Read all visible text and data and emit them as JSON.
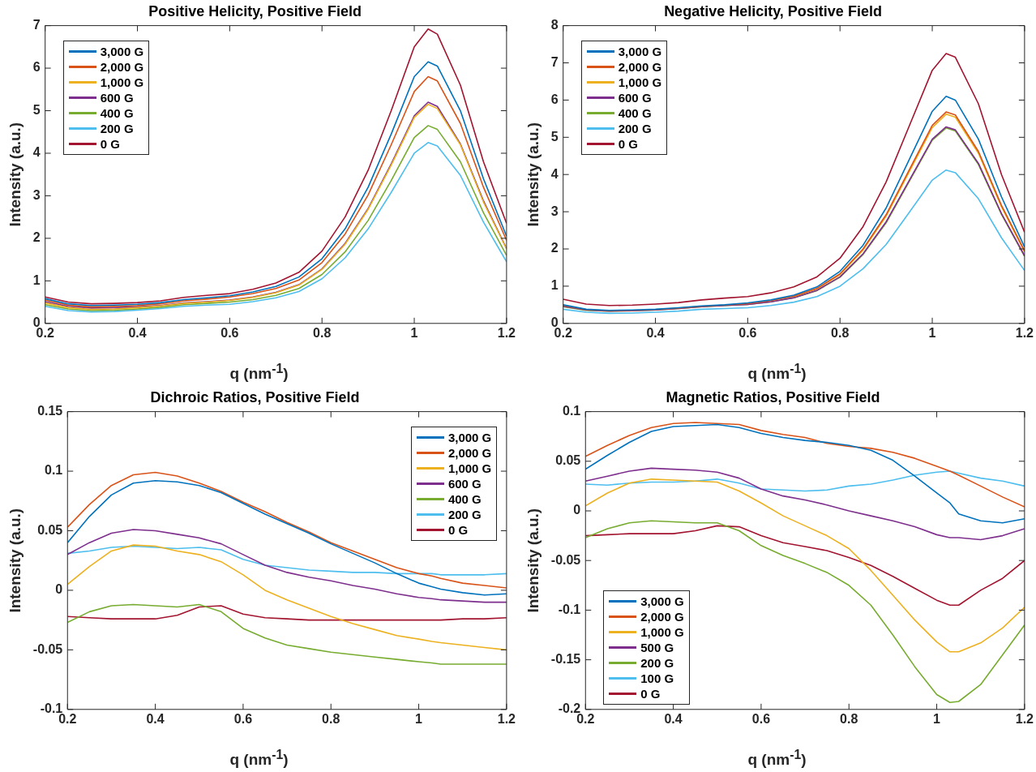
{
  "chart_data": [
    {
      "type": "line",
      "title": "Positive Helicity, Positive Field",
      "xlabel": "q (nm$^{-1}$)",
      "ylabel": "Intensity (a.u.)",
      "legend": "top left",
      "x": [
        0.2,
        0.25,
        0.3,
        0.35,
        0.4,
        0.45,
        0.5,
        0.55,
        0.6,
        0.65,
        0.7,
        0.75,
        0.8,
        0.85,
        0.9,
        0.95,
        1.0,
        1.03,
        1.05,
        1.1,
        1.15,
        1.2
      ],
      "xlim": [
        0.2,
        1.2
      ],
      "xticks": [
        0.2,
        0.4,
        0.6,
        0.8,
        1,
        1.2
      ],
      "ylim": [
        0,
        7
      ],
      "yticks": [
        0,
        1,
        2,
        3,
        4,
        5,
        6,
        7
      ],
      "series": [
        {
          "name": "3,000 G",
          "color": "#0072bd",
          "values": [
            0.58,
            0.46,
            0.42,
            0.43,
            0.45,
            0.49,
            0.56,
            0.6,
            0.65,
            0.74,
            0.87,
            1.09,
            1.52,
            2.22,
            3.2,
            4.45,
            5.8,
            6.15,
            6.05,
            5.0,
            3.4,
            2.05
          ]
        },
        {
          "name": "2,000 G",
          "color": "#d95319",
          "values": [
            0.55,
            0.43,
            0.39,
            0.4,
            0.42,
            0.46,
            0.53,
            0.57,
            0.62,
            0.7,
            0.82,
            1.02,
            1.43,
            2.1,
            3.02,
            4.2,
            5.45,
            5.8,
            5.7,
            4.7,
            3.2,
            1.95
          ]
        },
        {
          "name": "1,000 G",
          "color": "#edb120",
          "values": [
            0.48,
            0.37,
            0.33,
            0.34,
            0.37,
            0.41,
            0.47,
            0.5,
            0.54,
            0.61,
            0.72,
            0.9,
            1.27,
            1.86,
            2.68,
            3.72,
            4.84,
            5.15,
            5.05,
            4.2,
            2.85,
            1.75
          ]
        },
        {
          "name": "600 G",
          "color": "#7e2f8e",
          "values": [
            0.51,
            0.4,
            0.36,
            0.37,
            0.39,
            0.42,
            0.48,
            0.51,
            0.55,
            0.62,
            0.73,
            0.91,
            1.28,
            1.88,
            2.7,
            3.75,
            4.88,
            5.2,
            5.1,
            4.22,
            2.88,
            1.76
          ]
        },
        {
          "name": "400 G",
          "color": "#77ac30",
          "values": [
            0.44,
            0.34,
            0.3,
            0.31,
            0.34,
            0.38,
            0.44,
            0.47,
            0.5,
            0.56,
            0.66,
            0.82,
            1.15,
            1.68,
            2.42,
            3.36,
            4.37,
            4.65,
            4.56,
            3.8,
            2.6,
            1.6
          ]
        },
        {
          "name": "200 G",
          "color": "#4dbeee",
          "values": [
            0.4,
            0.3,
            0.27,
            0.28,
            0.31,
            0.35,
            0.4,
            0.43,
            0.45,
            0.51,
            0.6,
            0.75,
            1.05,
            1.54,
            2.22,
            3.08,
            4.0,
            4.25,
            4.17,
            3.48,
            2.38,
            1.45
          ]
        },
        {
          "name": "0 G",
          "color": "#a2142f",
          "values": [
            0.62,
            0.5,
            0.46,
            0.47,
            0.49,
            0.53,
            0.61,
            0.66,
            0.7,
            0.8,
            0.95,
            1.2,
            1.7,
            2.5,
            3.6,
            5.0,
            6.5,
            6.92,
            6.8,
            5.6,
            3.8,
            2.35
          ]
        }
      ]
    },
    {
      "type": "line",
      "title": "Negative Helicity, Positive Field",
      "xlabel": "q (nm$^{-1}$)",
      "ylabel": "Intensity (a.u.)",
      "legend": "top left",
      "x": [
        0.2,
        0.25,
        0.3,
        0.35,
        0.4,
        0.45,
        0.5,
        0.55,
        0.6,
        0.65,
        0.7,
        0.75,
        0.8,
        0.85,
        0.9,
        0.95,
        1.0,
        1.03,
        1.05,
        1.1,
        1.15,
        1.2
      ],
      "xlim": [
        0.2,
        1.2
      ],
      "xticks": [
        0.2,
        0.4,
        0.6,
        0.8,
        1,
        1.2
      ],
      "ylim": [
        0,
        8
      ],
      "yticks": [
        0,
        1,
        2,
        3,
        4,
        5,
        6,
        7,
        8
      ],
      "series": [
        {
          "name": "3,000 G",
          "color": "#0072bd",
          "values": [
            0.5,
            0.38,
            0.35,
            0.36,
            0.38,
            0.42,
            0.47,
            0.5,
            0.55,
            0.63,
            0.76,
            0.98,
            1.4,
            2.1,
            3.1,
            4.4,
            5.7,
            6.1,
            6.0,
            4.95,
            3.4,
            2.05
          ]
        },
        {
          "name": "2,000 G",
          "color": "#d95319",
          "values": [
            0.48,
            0.37,
            0.34,
            0.35,
            0.37,
            0.41,
            0.46,
            0.49,
            0.53,
            0.61,
            0.73,
            0.94,
            1.33,
            2.0,
            2.92,
            4.12,
            5.32,
            5.68,
            5.6,
            4.62,
            3.17,
            1.95
          ]
        },
        {
          "name": "1,000 G",
          "color": "#edb120",
          "values": [
            null,
            null,
            null,
            null,
            null,
            null,
            null,
            null,
            null,
            null,
            0.72,
            0.93,
            1.31,
            1.97,
            2.88,
            4.07,
            5.26,
            5.62,
            5.54,
            4.57,
            3.13,
            1.92
          ]
        },
        {
          "name": "600 G",
          "color": "#7e2f8e",
          "values": [
            0.46,
            0.36,
            0.33,
            0.34,
            0.36,
            0.4,
            0.45,
            0.48,
            0.51,
            0.58,
            0.69,
            0.89,
            1.25,
            1.87,
            2.73,
            3.84,
            4.95,
            5.28,
            5.2,
            4.3,
            2.95,
            1.82
          ]
        },
        {
          "name": "400 G",
          "color": "#77ac30",
          "values": [
            0.45,
            0.35,
            0.33,
            0.34,
            0.36,
            0.4,
            0.45,
            0.48,
            0.51,
            0.58,
            0.69,
            0.88,
            1.24,
            1.85,
            2.7,
            3.81,
            4.92,
            5.25,
            5.17,
            4.27,
            2.93,
            1.8
          ]
        },
        {
          "name": "200 G",
          "color": "#4dbeee",
          "values": [
            0.38,
            0.3,
            0.27,
            0.28,
            0.3,
            0.33,
            0.38,
            0.4,
            0.42,
            0.48,
            0.57,
            0.72,
            1.0,
            1.47,
            2.12,
            2.98,
            3.85,
            4.12,
            4.05,
            3.35,
            2.3,
            1.42
          ]
        },
        {
          "name": "0 G",
          "color": "#a2142f",
          "values": [
            0.65,
            0.52,
            0.48,
            0.49,
            0.52,
            0.56,
            0.63,
            0.68,
            0.72,
            0.82,
            0.98,
            1.25,
            1.75,
            2.6,
            3.8,
            5.3,
            6.8,
            7.25,
            7.15,
            5.9,
            4.0,
            2.45
          ]
        }
      ]
    },
    {
      "type": "line",
      "title": "Dichroic Ratios, Positive Field",
      "xlabel": "q (nm$^{-1}$)",
      "ylabel": "Intensity (a.u.)",
      "legend": "top right",
      "x": [
        0.2,
        0.25,
        0.3,
        0.35,
        0.4,
        0.45,
        0.5,
        0.55,
        0.6,
        0.65,
        0.7,
        0.75,
        0.8,
        0.85,
        0.9,
        0.95,
        1.0,
        1.03,
        1.05,
        1.1,
        1.15,
        1.2
      ],
      "xlim": [
        0.2,
        1.2
      ],
      "xticks": [
        0.2,
        0.4,
        0.6,
        0.8,
        1,
        1.2
      ],
      "ylim": [
        -0.1,
        0.15
      ],
      "yticks": [
        -0.1,
        -0.05,
        0,
        0.05,
        0.1,
        0.15
      ],
      "series": [
        {
          "name": "3,000 G",
          "color": "#0072bd",
          "values": [
            0.04,
            0.062,
            0.08,
            0.09,
            0.092,
            0.091,
            0.088,
            0.082,
            0.073,
            0.064,
            0.056,
            0.048,
            0.039,
            0.031,
            0.023,
            0.014,
            0.006,
            0.003,
            0.001,
            -0.002,
            -0.004,
            -0.003
          ]
        },
        {
          "name": "2,000 G",
          "color": "#d95319",
          "values": [
            0.053,
            0.072,
            0.088,
            0.097,
            0.099,
            0.096,
            0.09,
            0.083,
            0.074,
            0.066,
            0.057,
            0.049,
            0.04,
            0.033,
            0.026,
            0.019,
            0.014,
            0.012,
            0.01,
            0.006,
            0.004,
            0.002
          ]
        },
        {
          "name": "1,000 G",
          "color": "#edb120",
          "values": [
            0.005,
            0.02,
            0.033,
            0.038,
            0.037,
            0.033,
            0.03,
            0.024,
            0.013,
            0.0,
            -0.008,
            -0.015,
            -0.022,
            -0.028,
            -0.033,
            -0.038,
            -0.041,
            -0.043,
            -0.044,
            -0.046,
            -0.048,
            -0.05
          ]
        },
        {
          "name": "600 G",
          "color": "#7e2f8e",
          "values": [
            0.03,
            0.04,
            0.048,
            0.051,
            0.05,
            0.047,
            0.044,
            0.039,
            0.03,
            0.021,
            0.015,
            0.011,
            0.008,
            0.004,
            0.001,
            -0.003,
            -0.006,
            -0.007,
            -0.008,
            -0.009,
            -0.01,
            -0.01
          ]
        },
        {
          "name": "400 G",
          "color": "#77ac30",
          "values": [
            -0.027,
            -0.018,
            -0.013,
            -0.012,
            -0.013,
            -0.014,
            -0.012,
            -0.018,
            -0.032,
            -0.04,
            -0.046,
            -0.049,
            -0.052,
            -0.054,
            -0.056,
            -0.058,
            -0.06,
            -0.061,
            -0.062,
            -0.062,
            -0.062,
            -0.062
          ]
        },
        {
          "name": "200 G",
          "color": "#4dbeee",
          "values": [
            0.031,
            0.033,
            0.036,
            0.037,
            0.036,
            0.035,
            0.036,
            0.034,
            0.026,
            0.021,
            0.019,
            0.017,
            0.016,
            0.015,
            0.015,
            0.014,
            0.014,
            0.014,
            0.013,
            0.013,
            0.013,
            0.014
          ]
        },
        {
          "name": "0 G",
          "color": "#a2142f",
          "values": [
            -0.022,
            -0.023,
            -0.024,
            -0.024,
            -0.024,
            -0.021,
            -0.014,
            -0.013,
            -0.02,
            -0.023,
            -0.024,
            -0.025,
            -0.025,
            -0.025,
            -0.025,
            -0.025,
            -0.025,
            -0.025,
            -0.025,
            -0.024,
            -0.024,
            -0.023
          ]
        }
      ]
    },
    {
      "type": "line",
      "title": "Magnetic Ratios, Positive Field",
      "xlabel": "q (nm$^{-1}$)",
      "ylabel": "Intensity (a.u.)",
      "legend": "bottom left",
      "x": [
        0.2,
        0.25,
        0.3,
        0.35,
        0.4,
        0.45,
        0.5,
        0.55,
        0.6,
        0.65,
        0.7,
        0.75,
        0.8,
        0.85,
        0.9,
        0.95,
        1.0,
        1.03,
        1.05,
        1.1,
        1.15,
        1.2
      ],
      "xlim": [
        0.2,
        1.2
      ],
      "xticks": [
        0.2,
        0.4,
        0.6,
        0.8,
        1,
        1.2
      ],
      "ylim": [
        -0.2,
        0.1
      ],
      "yticks": [
        -0.2,
        -0.15,
        -0.1,
        -0.05,
        0,
        0.05,
        0.1
      ],
      "series": [
        {
          "name": "3,000 G",
          "color": "#0072bd",
          "values": [
            0.042,
            0.056,
            0.069,
            0.08,
            0.085,
            0.086,
            0.087,
            0.084,
            0.078,
            0.074,
            0.071,
            0.069,
            0.066,
            0.061,
            0.051,
            0.035,
            0.018,
            0.008,
            -0.003,
            -0.01,
            -0.012,
            -0.008
          ]
        },
        {
          "name": "2,000 G",
          "color": "#d95319",
          "values": [
            0.055,
            0.066,
            0.076,
            0.084,
            0.088,
            0.089,
            0.088,
            0.087,
            0.081,
            0.077,
            0.074,
            0.068,
            0.065,
            0.063,
            0.059,
            0.053,
            0.045,
            0.04,
            0.036,
            0.025,
            0.014,
            0.004
          ]
        },
        {
          "name": "1,000 G",
          "color": "#edb120",
          "values": [
            0.005,
            0.018,
            0.028,
            0.032,
            0.031,
            0.03,
            0.029,
            0.02,
            0.008,
            -0.005,
            -0.015,
            -0.025,
            -0.038,
            -0.06,
            -0.085,
            -0.11,
            -0.132,
            -0.142,
            -0.142,
            -0.133,
            -0.118,
            -0.097
          ]
        },
        {
          "name": "500 G",
          "color": "#7e2f8e",
          "values": [
            0.03,
            0.035,
            0.04,
            0.043,
            0.042,
            0.041,
            0.039,
            0.033,
            0.022,
            0.015,
            0.011,
            0.006,
            0.0,
            -0.005,
            -0.01,
            -0.016,
            -0.024,
            -0.027,
            -0.027,
            -0.029,
            -0.025,
            -0.018
          ]
        },
        {
          "name": "200 G",
          "color": "#77ac30",
          "values": [
            -0.027,
            -0.018,
            -0.012,
            -0.01,
            -0.011,
            -0.012,
            -0.012,
            -0.02,
            -0.035,
            -0.045,
            -0.053,
            -0.062,
            -0.075,
            -0.095,
            -0.125,
            -0.157,
            -0.185,
            -0.193,
            -0.192,
            -0.175,
            -0.145,
            -0.115
          ]
        },
        {
          "name": "100 G",
          "color": "#4dbeee",
          "values": [
            0.027,
            0.026,
            0.028,
            0.029,
            0.029,
            0.03,
            0.032,
            0.028,
            0.022,
            0.021,
            0.02,
            0.021,
            0.025,
            0.027,
            0.031,
            0.036,
            0.039,
            0.04,
            0.038,
            0.033,
            0.03,
            0.025
          ]
        },
        {
          "name": "0 G",
          "color": "#a2142f",
          "values": [
            -0.025,
            -0.024,
            -0.023,
            -0.023,
            -0.023,
            -0.02,
            -0.015,
            -0.016,
            -0.025,
            -0.032,
            -0.036,
            -0.04,
            -0.047,
            -0.055,
            -0.066,
            -0.078,
            -0.09,
            -0.095,
            -0.095,
            -0.08,
            -0.068,
            -0.05
          ]
        }
      ]
    }
  ]
}
